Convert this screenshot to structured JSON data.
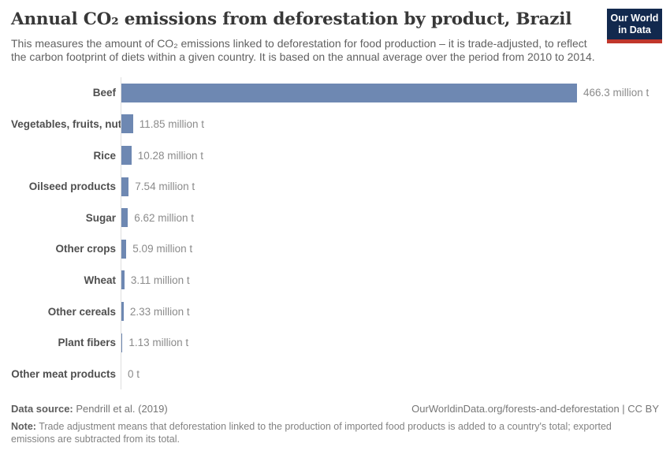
{
  "header": {
    "title": "Annual CO₂ emissions from deforestation by product, Brazil",
    "logo": {
      "line1": "Our World",
      "line2": "in Data",
      "bg_color": "#12294e",
      "accent_color": "#c0362c"
    }
  },
  "subtitle": "This measures the amount of CO₂ emissions linked to deforestation for food production – it is trade-adjusted, to reflect the carbon footprint of diets within a given country. It is based on the annual average over the period from 2010 to 2014.",
  "chart_data": {
    "type": "bar",
    "orientation": "horizontal",
    "title": "Annual CO₂ emissions from deforestation by product, Brazil",
    "unit": "million t",
    "categories": [
      "Beef",
      "Vegetables, fruits, nuts",
      "Rice",
      "Oilseed products",
      "Sugar",
      "Other crops",
      "Wheat",
      "Other cereals",
      "Plant fibers",
      "Other meat products"
    ],
    "values": [
      466.3,
      11.85,
      10.28,
      7.54,
      6.62,
      5.09,
      3.11,
      2.33,
      1.13,
      0
    ],
    "value_labels": [
      "466.3 million t",
      "11.85 million t",
      "10.28 million t",
      "7.54 million t",
      "6.62 million t",
      "5.09 million t",
      "3.11 million t",
      "2.33 million t",
      "1.13 million t",
      "0 t"
    ],
    "xlim": [
      0,
      466.3
    ],
    "bar_color": "#6e88b2",
    "axis_line_color": "#dedede",
    "grid": false,
    "legend": false
  },
  "footer": {
    "datasource_label": "Data source:",
    "datasource_value": "Pendrill et al. (2019)",
    "attribution": "OurWorldinData.org/forests-and-deforestation | CC BY",
    "note_label": "Note:",
    "note_text": "Trade adjustment means that deforestation linked to the production of imported food products is added to a country's total; exported emissions are subtracted from its total."
  }
}
